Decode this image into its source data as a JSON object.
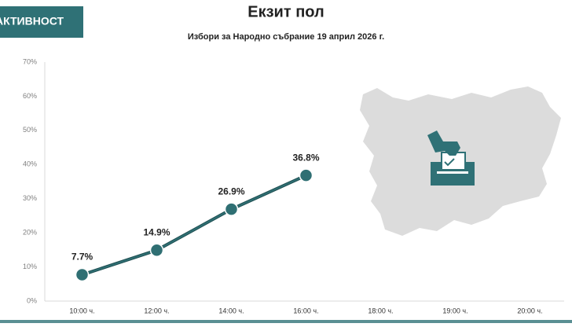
{
  "tab": "АКТИВНОСТ",
  "chart_data": {
    "type": "line",
    "title": "Екзит пол",
    "subtitle": "Избори за Народно събрание 19 април 2026 г.",
    "categories": [
      "10:00 ч.",
      "12:00 ч.",
      "14:00 ч.",
      "16:00 ч.",
      "18:00 ч.",
      "19:00 ч.",
      "20:00 ч."
    ],
    "series": [
      {
        "name": "Активност",
        "color": "#2f6f73",
        "values": [
          7.7,
          14.9,
          26.9,
          36.8,
          null,
          null,
          null
        ],
        "value_labels": [
          "7.7%",
          "14.9%",
          "26.9%",
          "36.8%",
          null,
          null,
          null
        ]
      }
    ],
    "ylim": [
      0,
      70
    ],
    "yticks": [
      {
        "value": 0,
        "label": "0%"
      },
      {
        "value": 10,
        "label": "10%"
      },
      {
        "value": 20,
        "label": "20%"
      },
      {
        "value": 30,
        "label": "30%"
      },
      {
        "value": 40,
        "label": "40%"
      },
      {
        "value": 50,
        "label": "50%"
      },
      {
        "value": 60,
        "label": "60%"
      },
      {
        "value": 70,
        "label": "70%"
      }
    ],
    "grid": false
  }
}
